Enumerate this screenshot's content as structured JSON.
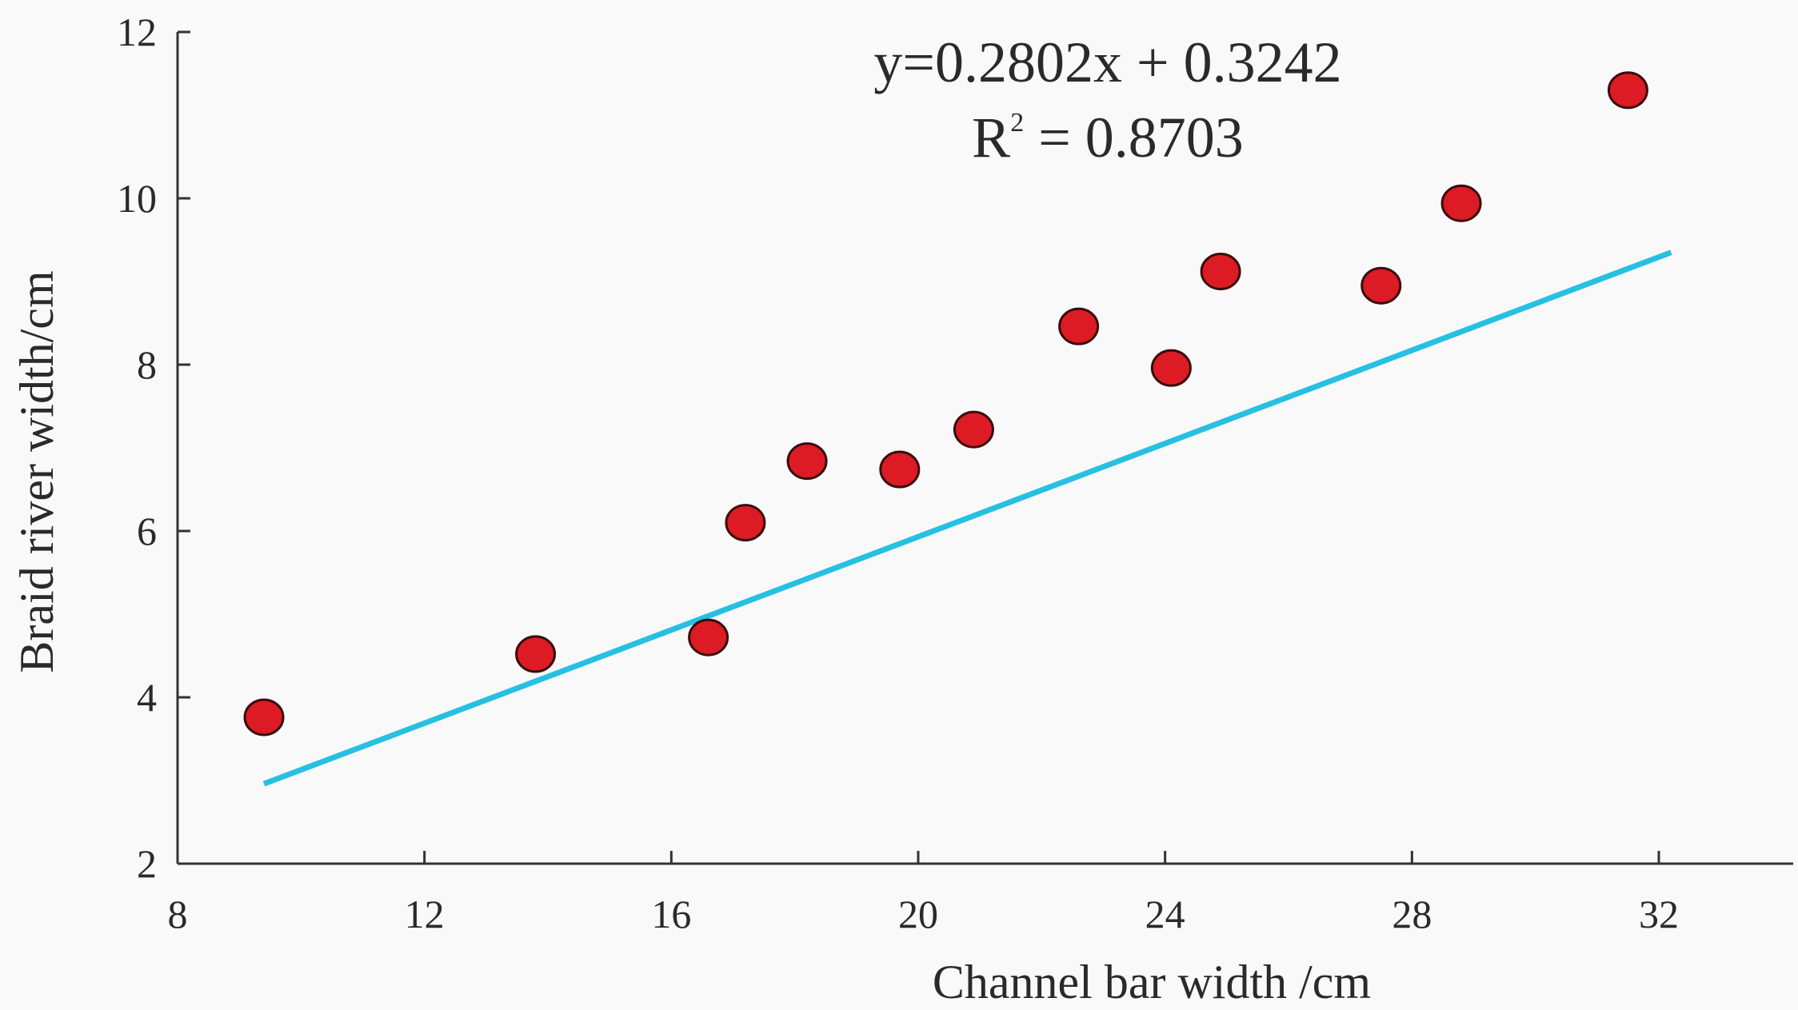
{
  "chart_data": {
    "type": "scatter",
    "title": "",
    "xlabel": "Channel bar width /cm",
    "ylabel": "Braid river width/cm",
    "xlim": [
      8,
      34
    ],
    "ylim": [
      2,
      12
    ],
    "x_ticks": [
      "8",
      "12",
      "16",
      "20",
      "24",
      "28",
      "32"
    ],
    "y_ticks": [
      "2",
      "4",
      "6",
      "8",
      "10",
      "12"
    ],
    "x_tick_values": [
      8,
      12,
      16,
      20,
      24,
      28,
      32
    ],
    "y_tick_values": [
      2,
      4,
      6,
      8,
      10,
      12
    ],
    "grid": false,
    "series": [
      {
        "type": "scatter",
        "x": [
          9.4,
          13.8,
          16.6,
          17.2,
          18.2,
          19.7,
          20.9,
          22.6,
          24.1,
          24.9,
          27.5,
          28.8,
          31.5
        ],
        "y": [
          3.76,
          4.52,
          4.72,
          6.1,
          6.84,
          6.74,
          7.22,
          8.46,
          7.96,
          9.12,
          8.95,
          9.94,
          11.3
        ]
      },
      {
        "type": "line",
        "x": [
          9.4,
          32.2
        ],
        "y": [
          2.96,
          9.35
        ]
      }
    ],
    "annotations": {
      "equation": "y=0.2802x + 0.3242",
      "r2_base": "R",
      "r2_sup": "2",
      "r2_value": " = 0.8703"
    },
    "colors": {
      "marker_fill": "#dd1b24",
      "marker_stroke": "#3a0c0c",
      "line": "#26c0e2",
      "axis": "#333333"
    }
  }
}
